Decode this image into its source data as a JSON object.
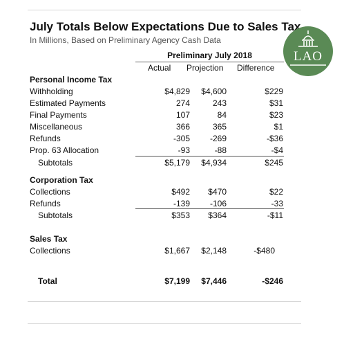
{
  "title": "July Totals Below Expectations Due to Sales Tax",
  "subtitle": "In Millions, Based on Preliminary Agency Cash Data",
  "logo_text": "LAO",
  "group_header": "Preliminary July 2018",
  "columns": {
    "actual": "Actual",
    "projection": "Projection",
    "difference": "Difference"
  },
  "personal_income_tax": {
    "heading": "Personal Income Tax",
    "rows": [
      {
        "label": "Withholding",
        "actual": "$4,829",
        "projection": "$4,600",
        "difference": "$229"
      },
      {
        "label": "Estimated Payments",
        "actual": "274",
        "projection": "243",
        "difference": "$31"
      },
      {
        "label": "Final Payments",
        "actual": "107",
        "projection": "84",
        "difference": "$23"
      },
      {
        "label": "Miscellaneous",
        "actual": "366",
        "projection": "365",
        "difference": "$1"
      },
      {
        "label": "Refunds",
        "actual": "-305",
        "projection": "-269",
        "difference": "-$36"
      },
      {
        "label": "Prop. 63 Allocation",
        "actual": "-93",
        "projection": "-88",
        "difference": "-$4"
      }
    ],
    "subtotal": {
      "label": "Subtotals",
      "actual": "$5,179",
      "projection": "$4,934",
      "difference": "$245"
    }
  },
  "corporation_tax": {
    "heading": "Corporation Tax",
    "rows": [
      {
        "label": "Collections",
        "actual": "$492",
        "projection": "$470",
        "difference": "$22"
      },
      {
        "label": "Refunds",
        "actual": "-139",
        "projection": "-106",
        "difference": "-33"
      }
    ],
    "subtotal": {
      "label": "Subtotals",
      "actual": "$353",
      "projection": "$364",
      "difference": "-$11"
    }
  },
  "sales_tax": {
    "heading": "Sales Tax",
    "rows": [
      {
        "label": "Collections",
        "actual": "$1,667",
        "projection": "$2,148",
        "difference": "-$480"
      }
    ]
  },
  "total": {
    "label": "Total",
    "actual": "$7,199",
    "projection": "$7,446",
    "difference": "-$246"
  }
}
